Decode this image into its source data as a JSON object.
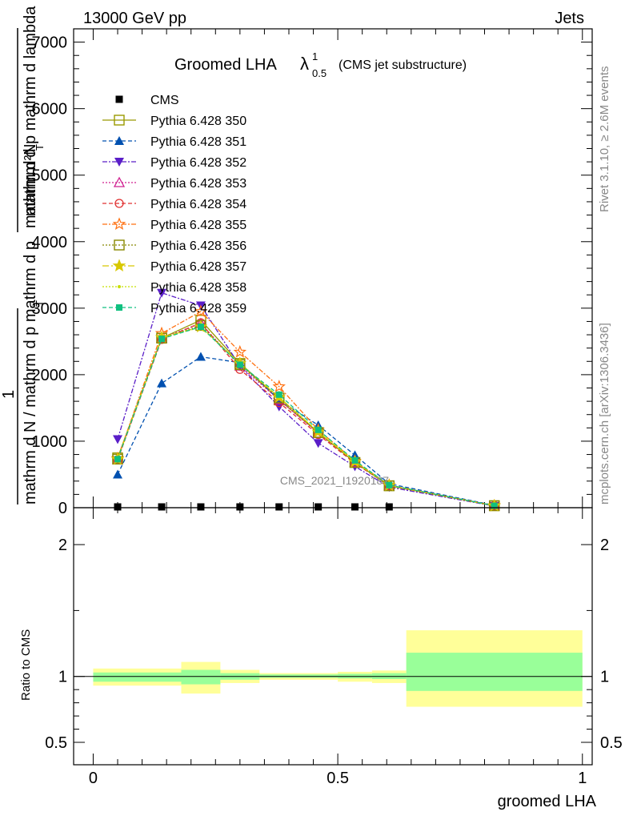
{
  "header": {
    "left": "13000 GeV pp",
    "right": "Jets"
  },
  "side_labels": {
    "rivet": "Rivet 3.1.10, ≥ 2.6M events",
    "mcplots": "mcplots.cern.ch [arXiv:1306.3436]"
  },
  "watermark": "CMS_2021_I1920187",
  "chart_data": [
    {
      "type": "line",
      "title_main": "Groomed LHA",
      "title_lambda": "λ",
      "title_sup": "1",
      "title_sub": "0.5",
      "title_suffix": "(CMS jet substructure)",
      "ylabel_top": "mathrm d²N",
      "ylabel_top_sub": "T",
      "ylabel_top2": "mathrm d p mathrm d lambda",
      "ylabel_one": "1",
      "ylabel_bottom": "mathrm d N / mathrm d p mathrm d p",
      "ylabel_bottom_sub": "T",
      "xlim": [
        -0.04,
        1.02
      ],
      "ylim": [
        0,
        7200
      ],
      "y_ticks": [
        0,
        1000,
        2000,
        3000,
        4000,
        5000,
        6000,
        7000
      ],
      "y_tick_labels": [
        "0",
        "1000",
        "2000",
        "3000",
        "4000",
        "5000",
        "6000",
        "7000"
      ],
      "x": [
        0.05,
        0.14,
        0.22,
        0.3,
        0.38,
        0.46,
        0.535,
        0.605,
        0.82
      ],
      "data_series": {
        "name": "CMS",
        "values": [
          0,
          0,
          0,
          0,
          0,
          0,
          0,
          0,
          0
        ]
      },
      "series": [
        {
          "name": "Pythia 6.428 350",
          "color": "#999900",
          "dash": "",
          "marker": "square-open",
          "values": [
            750,
            2550,
            2820,
            2170,
            1620,
            1130,
            680,
            330,
            30
          ]
        },
        {
          "name": "Pythia 6.428 351",
          "color": "#0050b0",
          "dash": "5,3",
          "marker": "triangle-up",
          "values": [
            500,
            1870,
            2270,
            2180,
            1620,
            1240,
            790,
            360,
            35
          ]
        },
        {
          "name": "Pythia 6.428 352",
          "color": "#5a1ec8",
          "dash": "6,2,2,2",
          "marker": "triangle-down",
          "values": [
            1030,
            3230,
            3040,
            2130,
            1520,
            970,
            620,
            310,
            25
          ]
        },
        {
          "name": "Pythia 6.428 353",
          "color": "#d02090",
          "dash": "2,2",
          "marker": "triangle-open",
          "values": [
            720,
            2550,
            2770,
            2130,
            1620,
            1120,
            680,
            330,
            30
          ]
        },
        {
          "name": "Pythia 6.428 354",
          "color": "#e03030",
          "dash": "5,3",
          "marker": "circle-open",
          "values": [
            720,
            2530,
            2780,
            2080,
            1580,
            1100,
            670,
            330,
            30
          ]
        },
        {
          "name": "Pythia 6.428 355",
          "color": "#ff7010",
          "dash": "6,2,2,2",
          "marker": "star-open",
          "values": [
            740,
            2620,
            2950,
            2340,
            1820,
            1170,
            700,
            340,
            30
          ]
        },
        {
          "name": "Pythia 6.428 356",
          "color": "#888800",
          "dash": "2,2",
          "marker": "square-open",
          "values": [
            730,
            2550,
            2740,
            2150,
            1650,
            1130,
            680,
            330,
            30
          ]
        },
        {
          "name": "Pythia 6.428 357",
          "color": "#d8c800",
          "dash": "8,3,2,3",
          "marker": "star",
          "values": [
            730,
            2560,
            2720,
            2170,
            1660,
            1140,
            690,
            335,
            30
          ]
        },
        {
          "name": "Pythia 6.428 358",
          "color": "#c8e000",
          "dash": "2,2",
          "marker": "dot",
          "values": [
            730,
            2560,
            2710,
            2170,
            1660,
            1140,
            690,
            335,
            30
          ]
        },
        {
          "name": "Pythia 6.428 359",
          "color": "#10c080",
          "dash": "5,3",
          "marker": "square",
          "values": [
            730,
            2540,
            2720,
            2150,
            1700,
            1170,
            710,
            340,
            30
          ]
        }
      ]
    },
    {
      "type": "bar",
      "ylabel": "Ratio to CMS",
      "xlabel": "groomed LHA",
      "xlim": [
        -0.04,
        1.02
      ],
      "ylim": [
        0.33,
        2.28
      ],
      "y_ticks": [
        0.5,
        1,
        2
      ],
      "y_tick_labels": [
        "0.5",
        "1",
        "2"
      ],
      "x_ticks": [
        0,
        0.5,
        1
      ],
      "x_tick_labels": [
        "0",
        "0.5",
        "1"
      ],
      "bins": [
        {
          "lo": 0.0,
          "hi": 0.18,
          "inner": [
            0.96,
            1.03
          ],
          "outer": [
            0.93,
            1.06
          ]
        },
        {
          "lo": 0.18,
          "hi": 0.26,
          "inner": [
            0.94,
            1.05
          ],
          "outer": [
            0.87,
            1.11
          ]
        },
        {
          "lo": 0.26,
          "hi": 0.34,
          "inner": [
            0.975,
            1.025
          ],
          "outer": [
            0.95,
            1.05
          ]
        },
        {
          "lo": 0.34,
          "hi": 0.5,
          "inner": [
            0.99,
            1.015
          ],
          "outer": [
            0.975,
            1.025
          ]
        },
        {
          "lo": 0.5,
          "hi": 0.57,
          "inner": [
            0.985,
            1.02
          ],
          "outer": [
            0.96,
            1.035
          ]
        },
        {
          "lo": 0.57,
          "hi": 0.64,
          "inner": [
            0.98,
            1.025
          ],
          "outer": [
            0.95,
            1.045
          ]
        },
        {
          "lo": 0.64,
          "hi": 1.0,
          "inner": [
            0.89,
            1.18
          ],
          "outer": [
            0.77,
            1.35
          ]
        }
      ],
      "band_colors": {
        "inner": "#99ff99",
        "outer": "#ffff99"
      }
    }
  ]
}
